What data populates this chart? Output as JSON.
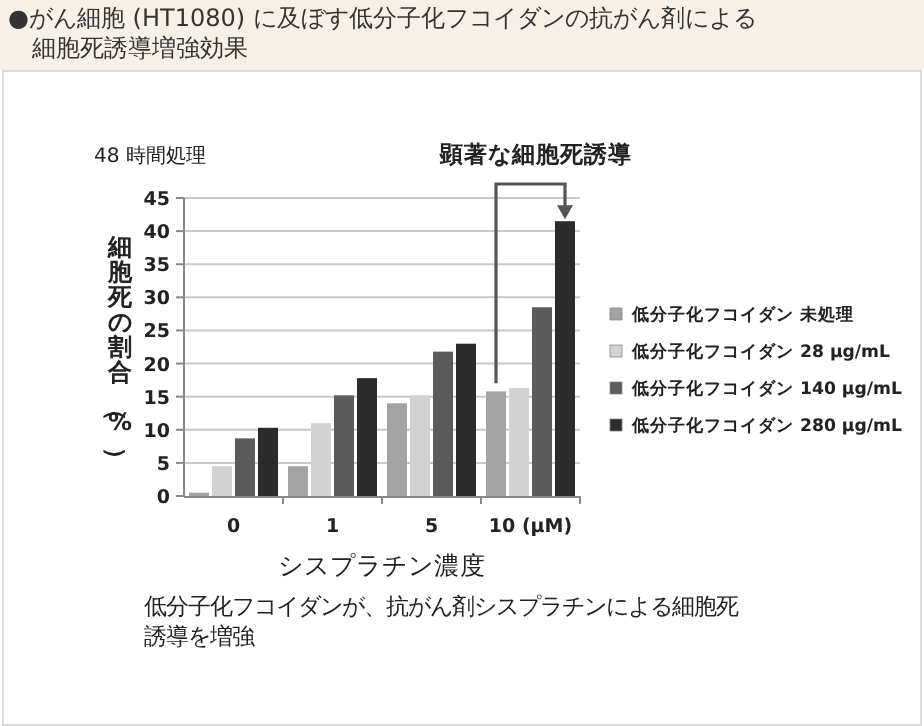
{
  "chart_data": {
    "type": "bar",
    "title": "●がん細胞 (HT1080) に及ぼす低分子化フコイダンの抗がん剤による細胞死誘導増強効果",
    "categories": [
      "0",
      "1",
      "5",
      "10 (μM)"
    ],
    "xlabel": "シスプラチン濃度",
    "ylabel": "細胞死の割合（%）",
    "series": [
      {
        "name": "低分子化フコイダン 未処理",
        "color": "#a3a3a3",
        "values": [
          0.5,
          4.5,
          14,
          15.8
        ]
      },
      {
        "name": "低分子化フコイダン 28 μg/mL",
        "color": "#d2d2d2",
        "values": [
          4.5,
          11,
          15.2,
          16.3
        ]
      },
      {
        "name": "低分子化フコイダン 140 μg/mL",
        "color": "#5c5c5c",
        "values": [
          8.7,
          15.2,
          21.8,
          28.5
        ]
      },
      {
        "name": "低分子化フコイダン 280 μg/mL",
        "color": "#2b2b2b",
        "values": [
          10.3,
          17.8,
          23,
          41.5
        ]
      }
    ],
    "ylim": [
      0,
      45
    ],
    "yticks": [
      0,
      5,
      10,
      15,
      20,
      25,
      30,
      35,
      40,
      45
    ],
    "grid": "y",
    "legend": "right",
    "annotations": [
      "48 時間処理",
      "顕著な細胞死誘導",
      "低分子化フコイダンが、抗がん剤シスプラチンによる細胞死誘導を増強"
    ]
  }
}
